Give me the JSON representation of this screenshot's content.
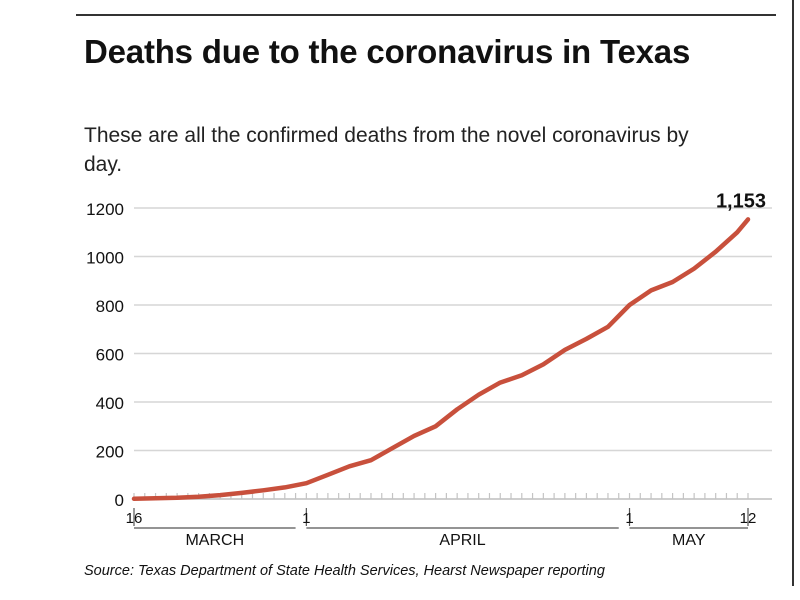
{
  "header": {
    "title": "Deaths due to the coronavirus in Texas",
    "subtitle": "These are all the confirmed deaths from the novel coronavirus by day."
  },
  "footer": {
    "source": "Source: Texas Department of State Health Services, Hearst Newspaper reporting"
  },
  "colors": {
    "line": "#c8503c",
    "grid": "#d6d6d6",
    "text": "#111111"
  },
  "chart_data": {
    "type": "line",
    "title": "Deaths due to the coronavirus in Texas",
    "xlabel": "",
    "ylabel": "",
    "ylim": [
      0,
      1200
    ],
    "yticks": [
      0,
      200,
      400,
      600,
      800,
      1000,
      1200
    ],
    "xrange": [
      "2020-03-16",
      "2020-05-12"
    ],
    "xtick_labels": [
      {
        "date": "2020-03-16",
        "label": "16"
      },
      {
        "date": "2020-04-01",
        "label": "1"
      },
      {
        "date": "2020-05-01",
        "label": "1"
      },
      {
        "date": "2020-05-12",
        "label": "12"
      }
    ],
    "month_labels": [
      {
        "label": "MARCH",
        "start": "2020-03-16",
        "end": "2020-03-31"
      },
      {
        "label": "APRIL",
        "start": "2020-04-01",
        "end": "2020-04-30"
      },
      {
        "label": "MAY",
        "start": "2020-05-01",
        "end": "2020-05-12"
      }
    ],
    "grid": true,
    "end_label": "1,153",
    "series": [
      {
        "x": [
          "2020-03-16",
          "2020-03-18",
          "2020-03-20",
          "2020-03-22",
          "2020-03-24",
          "2020-03-26",
          "2020-03-28",
          "2020-03-30",
          "2020-04-01",
          "2020-04-03",
          "2020-04-05",
          "2020-04-07",
          "2020-04-09",
          "2020-04-11",
          "2020-04-13",
          "2020-04-15",
          "2020-04-17",
          "2020-04-19",
          "2020-04-21",
          "2020-04-23",
          "2020-04-25",
          "2020-04-27",
          "2020-04-29",
          "2020-05-01",
          "2020-05-03",
          "2020-05-05",
          "2020-05-07",
          "2020-05-09",
          "2020-05-11",
          "2020-05-12"
        ],
        "y": [
          1,
          3,
          5,
          9,
          16,
          25,
          36,
          48,
          65,
          100,
          135,
          160,
          210,
          260,
          300,
          370,
          430,
          480,
          510,
          555,
          615,
          660,
          710,
          800,
          860,
          895,
          950,
          1020,
          1100,
          1153
        ]
      }
    ]
  }
}
